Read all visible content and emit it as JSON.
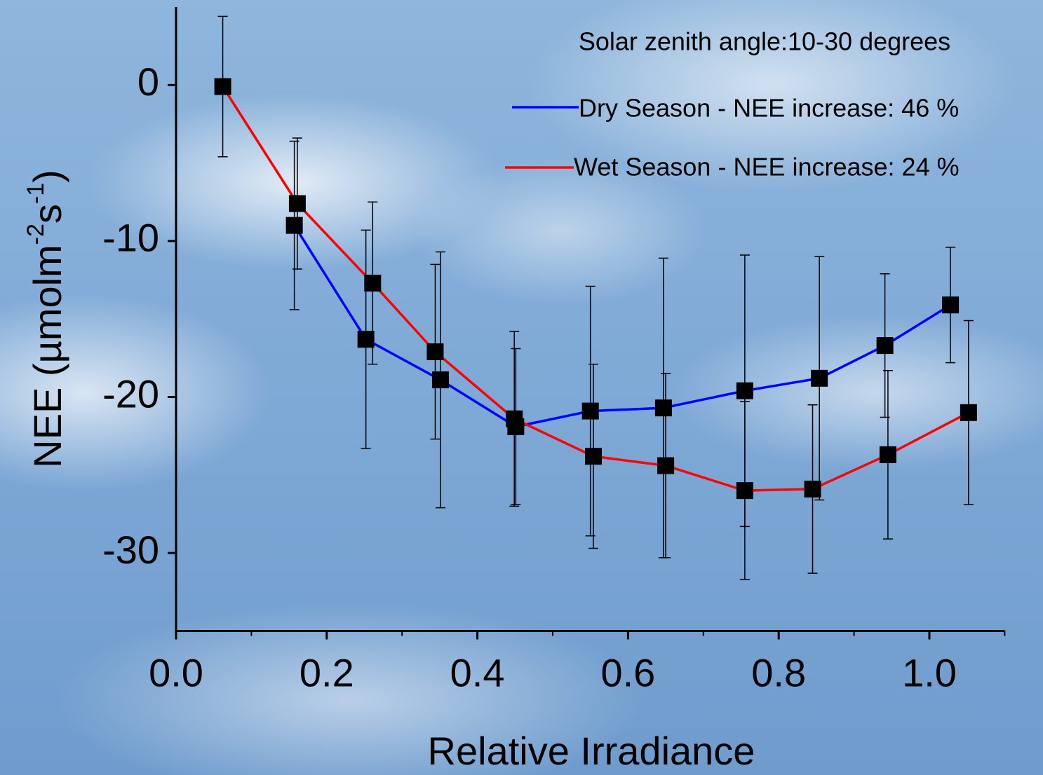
{
  "chart_data": {
    "type": "line",
    "annotation": "Solar zenith angle:10-30 degrees",
    "xlabel": "Relative Irradiance",
    "ylabel": [
      "NEE (µmolm",
      "-2",
      "s",
      "-1",
      ")"
    ],
    "xlim": [
      0,
      1.1
    ],
    "ylim": [
      -35,
      5
    ],
    "xticks": [
      {
        "value": 0,
        "label": "0.0"
      },
      0.2,
      0.4,
      0.6,
      0.8,
      {
        "value": 1,
        "label": "1.0"
      }
    ],
    "xminorticks": [
      0.1,
      0.3,
      0.5,
      0.7,
      0.9,
      1.1
    ],
    "yticks": [
      -30,
      -20,
      -10,
      0
    ],
    "series": [
      {
        "name": "Dry Season - NEE increase: 46 %",
        "color": "#0000ff",
        "x": [
          0.157,
          0.252,
          0.351,
          0.451,
          0.55,
          0.647,
          0.755,
          0.854,
          0.941,
          1.028
        ],
        "values": [
          -9.0,
          -16.3,
          -18.9,
          -21.9,
          -20.9,
          -20.7,
          -19.6,
          -18.8,
          -16.7,
          -14.1
        ],
        "errors": [
          5.4,
          7.0,
          8.2,
          5.0,
          8.0,
          9.6,
          8.7,
          7.8,
          4.6,
          3.7
        ]
      },
      {
        "name": "Wet Season - NEE increase: 24 %",
        "color": "#ff0000",
        "x": [
          0.062,
          0.161,
          0.261,
          0.344,
          0.449,
          0.554,
          0.65,
          0.755,
          0.845,
          0.945,
          1.052
        ],
        "values": [
          -0.1,
          -7.6,
          -12.7,
          -17.1,
          -21.4,
          -23.8,
          -24.4,
          -26.0,
          -25.9,
          -23.7,
          -21.0
        ],
        "errors": [
          4.5,
          4.2,
          5.2,
          5.6,
          5.6,
          5.9,
          5.9,
          5.7,
          5.4,
          5.4,
          5.9
        ]
      }
    ]
  }
}
